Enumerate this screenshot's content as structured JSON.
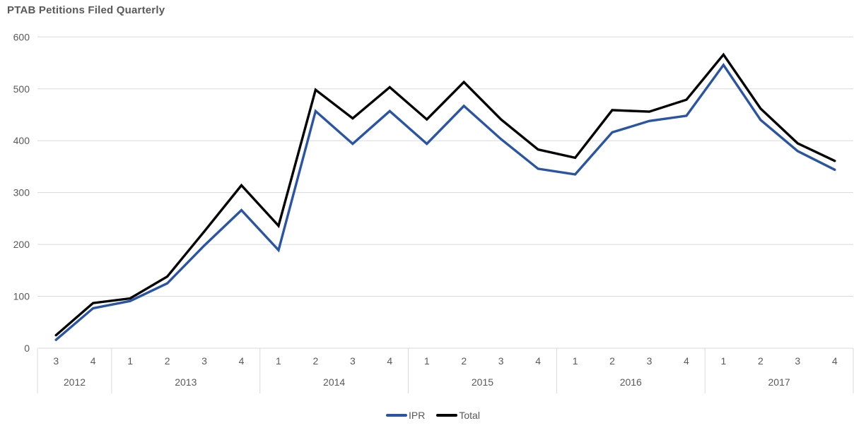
{
  "page_title": "PTAB Petitions Filed Quarterly",
  "colors": {
    "title_text": "#595959",
    "axis_text": "#595959",
    "gridline": "#d9d9d9",
    "axis_line": "#d9d9d9",
    "ipr_line": "#2a54a4",
    "total_line": "#000000",
    "background": "#ffffff"
  },
  "legend": {
    "items": [
      {
        "label": "IPR",
        "color": "#2a54a4"
      },
      {
        "label": "Total",
        "color": "#000000"
      }
    ],
    "position": "bottom-center"
  },
  "chart_data": {
    "type": "line",
    "title": "PTAB Petitions Filed Quarterly",
    "xlabel": "",
    "ylabel": "",
    "ylim": [
      0,
      600
    ],
    "ytick_step": 100,
    "ytick_labels": [
      "0",
      "100",
      "200",
      "300",
      "400",
      "500",
      "600"
    ],
    "grid": "horizontal",
    "legend_position": "bottom-center",
    "x_quarter_labels": [
      "3",
      "4",
      "1",
      "2",
      "3",
      "4",
      "1",
      "2",
      "3",
      "4",
      "1",
      "2",
      "3",
      "4",
      "1",
      "2",
      "3",
      "4",
      "1",
      "2",
      "3",
      "4"
    ],
    "year_groups": [
      {
        "label": "2012",
        "quarters": 2
      },
      {
        "label": "2013",
        "quarters": 4
      },
      {
        "label": "2014",
        "quarters": 4
      },
      {
        "label": "2015",
        "quarters": 4
      },
      {
        "label": "2016",
        "quarters": 4
      },
      {
        "label": "2017",
        "quarters": 4
      }
    ],
    "series": [
      {
        "name": "IPR",
        "color": "#2a54a4",
        "values": [
          16,
          77,
          91,
          125,
          198,
          266,
          189,
          457,
          394,
          457,
          394,
          467,
          403,
          346,
          335,
          416,
          438,
          448,
          546,
          440,
          380,
          344
        ]
      },
      {
        "name": "Total",
        "color": "#000000",
        "values": [
          25,
          87,
          96,
          138,
          225,
          314,
          236,
          498,
          443,
          503,
          441,
          513,
          441,
          383,
          367,
          459,
          456,
          479,
          566,
          462,
          395,
          361
        ]
      }
    ]
  }
}
